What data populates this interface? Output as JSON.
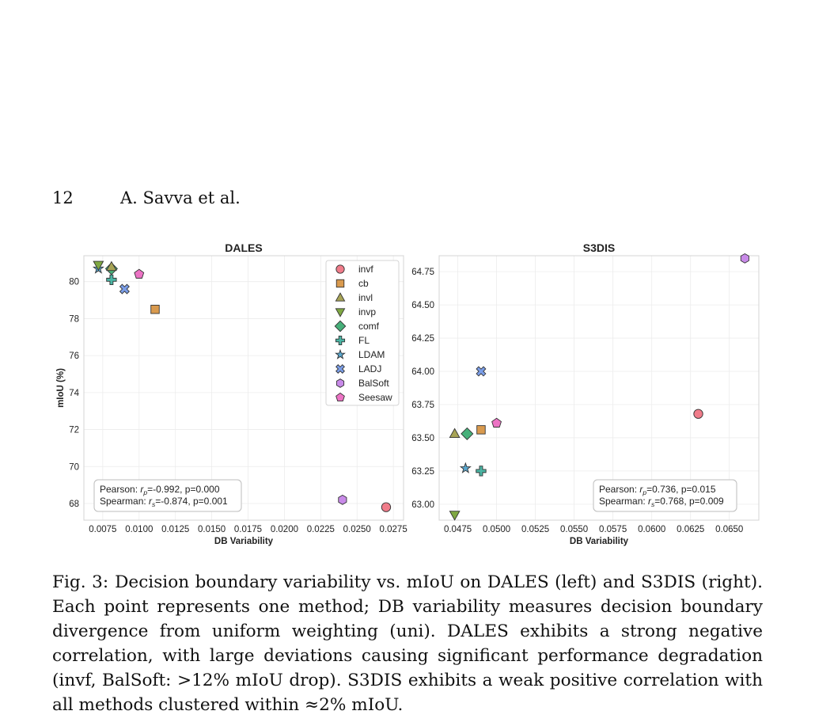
{
  "page": {
    "number": "12",
    "authors": "A. Savva et al."
  },
  "caption": {
    "label": "Fig. 3:",
    "text": "Decision boundary variability vs. mIoU on DALES (left) and S3DIS (right). Each point represents one method; DB variability measures decision boundary divergence from uniform weighting (uni). DALES exhibits a strong negative correlation, with large deviations causing significant performance degradation (invf, BalSoft: >12% mIoU drop). S3DIS exhibits a weak positive correlation with all methods clustered within ≈2% mIoU."
  },
  "chart_data": [
    {
      "type": "scatter",
      "title": "DALES",
      "xlabel": "DB Variability",
      "ylabel": "mIoU (%)",
      "xlim": [
        0.0062,
        0.0282
      ],
      "ylim": [
        67.1,
        81.4
      ],
      "xticks": [
        0.0075,
        0.01,
        0.0125,
        0.015,
        0.0175,
        0.02,
        0.0225,
        0.025,
        0.0275
      ],
      "xtick_labels": [
        "0.0075",
        "0.0100",
        "0.0125",
        "0.0150",
        "0.0175",
        "0.0200",
        "0.0225",
        "0.0250",
        "0.0275"
      ],
      "yticks": [
        68,
        70,
        72,
        74,
        76,
        78,
        80
      ],
      "ytick_labels": [
        "68",
        "70",
        "72",
        "74",
        "76",
        "78",
        "80"
      ],
      "grid": true,
      "legend": "top-right",
      "points": [
        {
          "method": "invf",
          "x": 0.027,
          "y": 67.8,
          "marker": "circle",
          "color": "#f07c8a"
        },
        {
          "method": "cb",
          "x": 0.0111,
          "y": 78.5,
          "marker": "square",
          "color": "#d99a4e"
        },
        {
          "method": "invl",
          "x": 0.0081,
          "y": 80.8,
          "marker": "triangle-up",
          "color": "#a8a456"
        },
        {
          "method": "invp",
          "x": 0.0072,
          "y": 80.9,
          "marker": "triangle-down",
          "color": "#7fa842"
        },
        {
          "method": "comf",
          "x": 0.0081,
          "y": 80.7,
          "marker": "diamond",
          "color": "#47b07a"
        },
        {
          "method": "FL",
          "x": 0.0081,
          "y": 80.1,
          "marker": "plus",
          "color": "#4bb5a4"
        },
        {
          "method": "LDAM",
          "x": 0.0072,
          "y": 80.7,
          "marker": "star",
          "color": "#5aa8d0"
        },
        {
          "method": "LADJ",
          "x": 0.009,
          "y": 79.6,
          "marker": "x",
          "color": "#7b9ee8"
        },
        {
          "method": "BalSoft",
          "x": 0.024,
          "y": 68.2,
          "marker": "hexagon",
          "color": "#c88ae8"
        },
        {
          "method": "Seesaw",
          "x": 0.01,
          "y": 80.4,
          "marker": "pentagon",
          "color": "#ec73c4"
        }
      ],
      "annotation": {
        "pearson_prefix": "Pearson: ",
        "pearson_sym": "r",
        "pearson_sub": "p",
        "pearson_rest": "=-0.992, p=0.000",
        "spearman_prefix": "Spearman: ",
        "spearman_sym": "r",
        "spearman_sub": "s",
        "spearman_rest": "=-0.874, p=0.001"
      }
    },
    {
      "type": "scatter",
      "title": "S3DIS",
      "xlabel": "DB Variability",
      "ylabel": "",
      "xlim": [
        0.0463,
        0.0669
      ],
      "ylim": [
        62.88,
        64.87
      ],
      "xticks": [
        0.0475,
        0.05,
        0.0525,
        0.055,
        0.0575,
        0.06,
        0.0625,
        0.065
      ],
      "xtick_labels": [
        "0.0475",
        "0.0500",
        "0.0525",
        "0.0550",
        "0.0575",
        "0.0600",
        "0.0625",
        "0.0650"
      ],
      "yticks": [
        63.0,
        63.25,
        63.5,
        63.75,
        64.0,
        64.25,
        64.5,
        64.75
      ],
      "ytick_labels": [
        "63.00",
        "63.25",
        "63.50",
        "63.75",
        "64.00",
        "64.25",
        "64.50",
        "64.75"
      ],
      "grid": true,
      "points": [
        {
          "method": "invf",
          "x": 0.063,
          "y": 63.68,
          "marker": "circle",
          "color": "#f07c8a"
        },
        {
          "method": "cb",
          "x": 0.049,
          "y": 63.56,
          "marker": "square",
          "color": "#d99a4e"
        },
        {
          "method": "invl",
          "x": 0.0473,
          "y": 63.53,
          "marker": "triangle-up",
          "color": "#a8a456"
        },
        {
          "method": "invp",
          "x": 0.0473,
          "y": 62.92,
          "marker": "triangle-down",
          "color": "#7fa842"
        },
        {
          "method": "comf",
          "x": 0.0481,
          "y": 63.53,
          "marker": "diamond",
          "color": "#47b07a"
        },
        {
          "method": "FL",
          "x": 0.049,
          "y": 63.25,
          "marker": "plus",
          "color": "#4bb5a4"
        },
        {
          "method": "LDAM",
          "x": 0.048,
          "y": 63.27,
          "marker": "star",
          "color": "#5aa8d0"
        },
        {
          "method": "LADJ",
          "x": 0.049,
          "y": 64.0,
          "marker": "x",
          "color": "#7b9ee8"
        },
        {
          "method": "BalSoft",
          "x": 0.066,
          "y": 64.85,
          "marker": "hexagon",
          "color": "#c88ae8"
        },
        {
          "method": "Seesaw",
          "x": 0.05,
          "y": 63.61,
          "marker": "pentagon",
          "color": "#ec73c4"
        }
      ],
      "annotation": {
        "pearson_prefix": "Pearson: ",
        "pearson_sym": "r",
        "pearson_sub": "p",
        "pearson_rest": "=0.736, p=0.015",
        "spearman_prefix": "Spearman: ",
        "spearman_sym": "r",
        "spearman_sub": "s",
        "spearman_rest": "=0.768, p=0.009"
      }
    }
  ]
}
